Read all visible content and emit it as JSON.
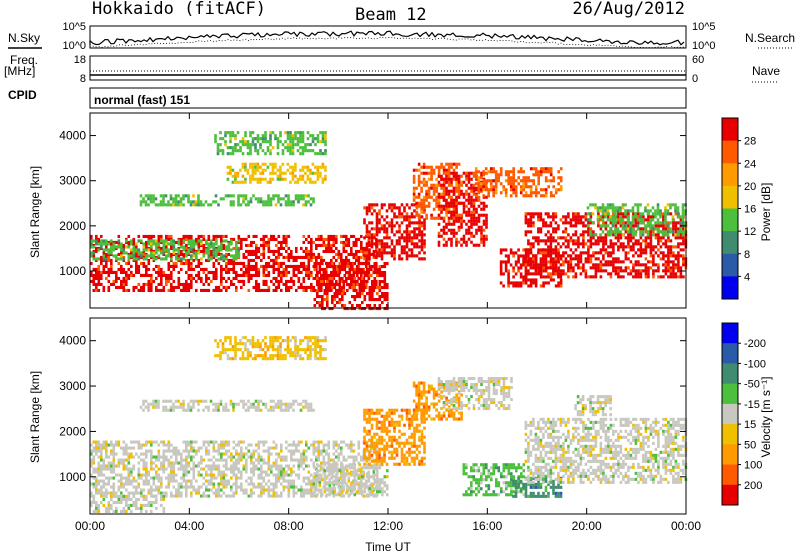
{
  "header": {
    "station": "Hokkaido (fitACF)",
    "beam": "Beam 12",
    "date": "26/Aug/2012"
  },
  "top_panels": {
    "nsky_label": "N.Sky",
    "nsearch_label": "N.Search",
    "nsky_ticks": [
      "10^5",
      "10^0"
    ],
    "freq_label": "Freq.",
    "freq_unit": "[MHz]",
    "freq_ticks": [
      "18",
      "8"
    ],
    "nave_label": "Nave",
    "nave_ticks": [
      "60",
      "0"
    ],
    "cpid_label": "CPID",
    "cpid_value": "normal (fast) 151"
  },
  "colors": {
    "power": [
      "#0000ee",
      "#2a5aa8",
      "#3f8c6e",
      "#4cbf3c",
      "#f0c000",
      "#ff9a00",
      "#ff5a00",
      "#e80000"
    ],
    "velocity": [
      "#e80000",
      "#ff5a00",
      "#ff9a00",
      "#f0c000",
      "#c8c8c0",
      "#4cbf3c",
      "#3f8c6e",
      "#2a5aa8",
      "#0000ee"
    ]
  },
  "chart_data": [
    {
      "type": "heatmap",
      "name": "Power",
      "ylabel": "Slant Range [km]",
      "xlabel": "",
      "ylim": [
        180,
        4500
      ],
      "y_ticks": [
        1000,
        2000,
        3000,
        4000
      ],
      "x_ticks": [
        "00:00",
        "04:00",
        "08:00",
        "12:00",
        "16:00",
        "20:00",
        "00:00"
      ],
      "colorbar_label": "Power [dB]",
      "colorbar_ticks": [
        "4",
        "8",
        "12",
        "16",
        "20",
        "24",
        "28"
      ],
      "regions": [
        {
          "t0": 0,
          "t1": 11.5,
          "r0": 600,
          "r1": 1800,
          "c": 7
        },
        {
          "t0": 0,
          "t1": 6,
          "r0": 1300,
          "r1": 1700,
          "c": 3
        },
        {
          "t0": 2,
          "t1": 9,
          "r0": 2450,
          "r1": 2700,
          "c": 3
        },
        {
          "t0": 5,
          "t1": 9.5,
          "r0": 3600,
          "r1": 4100,
          "c": 3
        },
        {
          "t0": 5.5,
          "t1": 9.5,
          "r0": 3000,
          "r1": 3400,
          "c": 4
        },
        {
          "t0": 9,
          "t1": 12,
          "r0": 180,
          "r1": 1200,
          "c": 7
        },
        {
          "t0": 11,
          "t1": 13.5,
          "r0": 1300,
          "r1": 2500,
          "c": 7
        },
        {
          "t0": 13,
          "t1": 15,
          "r0": 2200,
          "r1": 3400,
          "c": 6
        },
        {
          "t0": 14,
          "t1": 16,
          "r0": 1600,
          "r1": 3200,
          "c": 7
        },
        {
          "t0": 15.5,
          "t1": 19,
          "r0": 2700,
          "r1": 3300,
          "c": 6
        },
        {
          "t0": 16.5,
          "t1": 19,
          "r0": 700,
          "r1": 1500,
          "c": 7
        },
        {
          "t0": 17.5,
          "t1": 24,
          "r0": 900,
          "r1": 2300,
          "c": 7
        },
        {
          "t0": 20,
          "t1": 24,
          "r0": 1800,
          "r1": 2500,
          "c": 3
        }
      ]
    },
    {
      "type": "heatmap",
      "name": "Velocity",
      "ylabel": "Slant Range [km]",
      "xlabel": "Time UT",
      "ylim": [
        180,
        4500
      ],
      "y_ticks": [
        1000,
        2000,
        3000,
        4000
      ],
      "x_ticks": [
        "00:00",
        "04:00",
        "08:00",
        "12:00",
        "16:00",
        "20:00",
        "00:00"
      ],
      "colorbar_label": "Velocity [m s⁻¹]",
      "colorbar_ticks": [
        "200",
        "100",
        "50",
        "15",
        "-15",
        "-50",
        "-100",
        "-200"
      ],
      "regions": [
        {
          "t0": 0,
          "t1": 11.5,
          "r0": 600,
          "r1": 1800,
          "c": 4
        },
        {
          "t0": 0,
          "t1": 3,
          "r0": 250,
          "r1": 600,
          "c": 4
        },
        {
          "t0": 2,
          "t1": 9,
          "r0": 2450,
          "r1": 2700,
          "c": 4
        },
        {
          "t0": 5,
          "t1": 9.5,
          "r0": 3600,
          "r1": 4100,
          "c": 3
        },
        {
          "t0": 9,
          "t1": 12,
          "r0": 600,
          "r1": 1300,
          "c": 4
        },
        {
          "t0": 11,
          "t1": 13.5,
          "r0": 1300,
          "r1": 2500,
          "c": 2
        },
        {
          "t0": 13,
          "t1": 15,
          "r0": 2300,
          "r1": 3100,
          "c": 2
        },
        {
          "t0": 14,
          "t1": 17,
          "r0": 2500,
          "r1": 3200,
          "c": 4
        },
        {
          "t0": 15,
          "t1": 17.5,
          "r0": 600,
          "r1": 1300,
          "c": 5
        },
        {
          "t0": 17,
          "t1": 19,
          "r0": 600,
          "r1": 1000,
          "c": 6
        },
        {
          "t0": 17.5,
          "t1": 24,
          "r0": 900,
          "r1": 2300,
          "c": 4
        },
        {
          "t0": 19.5,
          "t1": 21,
          "r0": 2400,
          "r1": 2800,
          "c": 4
        }
      ]
    }
  ]
}
